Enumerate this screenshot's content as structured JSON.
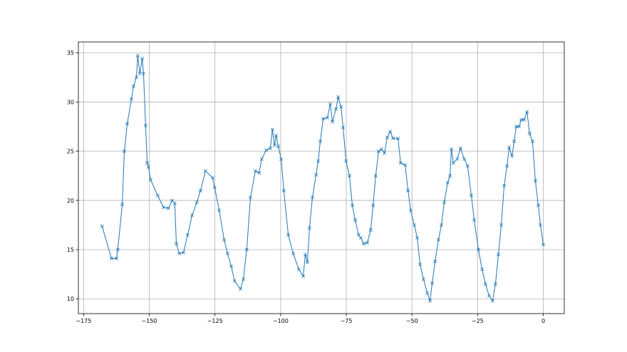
{
  "chart_data": {
    "type": "line",
    "marker": "x",
    "color": "#1f77b4",
    "grid": true,
    "xlim": [
      -177,
      8
    ],
    "ylim": [
      8.5,
      36.1
    ],
    "xticks": [
      -175,
      -150,
      -125,
      -100,
      -75,
      -50,
      -25,
      0
    ],
    "yticks": [
      10,
      15,
      20,
      25,
      30,
      35
    ],
    "xtick_labels": [
      "−175",
      "−150",
      "−125",
      "−100",
      "−75",
      "−50",
      "−25",
      "0"
    ],
    "ytick_labels": [
      "10",
      "15",
      "20",
      "25",
      "30",
      "35"
    ],
    "series": [
      {
        "x": [
          -168,
          -164.4,
          -162.5,
          -162,
          -160.3,
          -159.5,
          -158.4,
          -156.8,
          -156,
          -154.9,
          -154.4,
          -153.6,
          -152.7,
          -152.2,
          -151.4,
          -150.8,
          -150.3,
          -149.5,
          -146.8,
          -144.6,
          -142.7,
          -141.3,
          -140.3,
          -139.7,
          -138.6,
          -137,
          -135.4,
          -133.7,
          -131.9,
          -130.5,
          -128.6,
          -125.9,
          -125.1,
          -123.4,
          -121.5,
          -120.2,
          -118.8,
          -117.5,
          -115.3,
          -114.2,
          -112.9,
          -111.5,
          -109.6,
          -108.2,
          -107.2,
          -105.5,
          -103.9,
          -103.1,
          -102.3,
          -101.7,
          -100.9,
          -99.8,
          -98.8,
          -97.1,
          -95.2,
          -93.1,
          -91.4,
          -90.6,
          -89.8,
          -89,
          -87.9,
          -86.5,
          -85.7,
          -84.9,
          -83.8,
          -82.2,
          -81.1,
          -80.3,
          -78.9,
          -78.1,
          -77,
          -76.2,
          -75.1,
          -73.8,
          -72.7,
          -71.6,
          -70.3,
          -69.5,
          -68.4,
          -67,
          -65.7,
          -64.8,
          -63.8,
          -62.7,
          -61.6,
          -60.5,
          -59.4,
          -58.3,
          -57.2,
          -55.3,
          -54.3,
          -52.6,
          -51.5,
          -50.5,
          -49.1,
          -48,
          -46.9,
          -45.6,
          -44.2,
          -43.1,
          -42.3,
          -41.2,
          -39.9,
          -38.8,
          -37.7,
          -36.4,
          -35.5,
          -35,
          -34.2,
          -32.8,
          -31.5,
          -30.1,
          -28.8,
          -27.4,
          -26.3,
          -24.7,
          -23.3,
          -22,
          -20.6,
          -19.3,
          -18.2,
          -17.1,
          -16,
          -14.9,
          -13.8,
          -13,
          -11.9,
          -11.1,
          -10.3,
          -9.2,
          -8.4,
          -7.3,
          -6.2,
          -5.2,
          -4.1,
          -3,
          -1.9,
          -1.1,
          0
        ],
        "y": [
          17.4,
          14.1,
          14.1,
          15,
          19.6,
          25,
          27.8,
          30.3,
          31.6,
          32.5,
          34.7,
          32.9,
          34.4,
          32.9,
          27.6,
          23.8,
          23.4,
          22.1,
          20.5,
          19.3,
          19.2,
          20,
          19.7,
          15.6,
          14.6,
          14.7,
          16.5,
          18.5,
          19.8,
          21,
          23,
          22.3,
          21.3,
          19,
          16,
          14.6,
          13.3,
          11.8,
          11,
          12,
          15,
          20.3,
          23,
          22.8,
          24.2,
          25.1,
          25.3,
          27.2,
          25.6,
          26.6,
          25.5,
          24.2,
          21,
          16.5,
          14.6,
          13,
          12.3,
          14.5,
          13.7,
          17.2,
          20.3,
          22.6,
          24,
          26,
          28.3,
          28.4,
          29.8,
          28,
          29.3,
          30.5,
          29.5,
          27.4,
          24,
          22.5,
          19.5,
          18,
          16.5,
          16.2,
          15.6,
          15.7,
          17,
          19.5,
          22.5,
          25,
          25.2,
          24.8,
          26.4,
          27,
          26.3,
          26.3,
          23.8,
          23.6,
          21,
          19,
          17.5,
          16.2,
          13.5,
          12,
          10.6,
          9.8,
          11.6,
          13.8,
          16,
          17.5,
          19.8,
          21.8,
          22.5,
          25.2,
          23.8,
          24.2,
          25.3,
          24.2,
          23.5,
          20.5,
          18,
          15,
          13,
          11.5,
          10.3,
          9.8,
          11.5,
          14.5,
          17.5,
          21.5,
          23.5,
          25.4,
          24.5,
          26,
          27.5,
          27.5,
          28.2,
          28.2,
          29,
          26.8,
          26,
          22,
          19.5,
          17.5,
          15.5
        ]
      }
    ]
  }
}
